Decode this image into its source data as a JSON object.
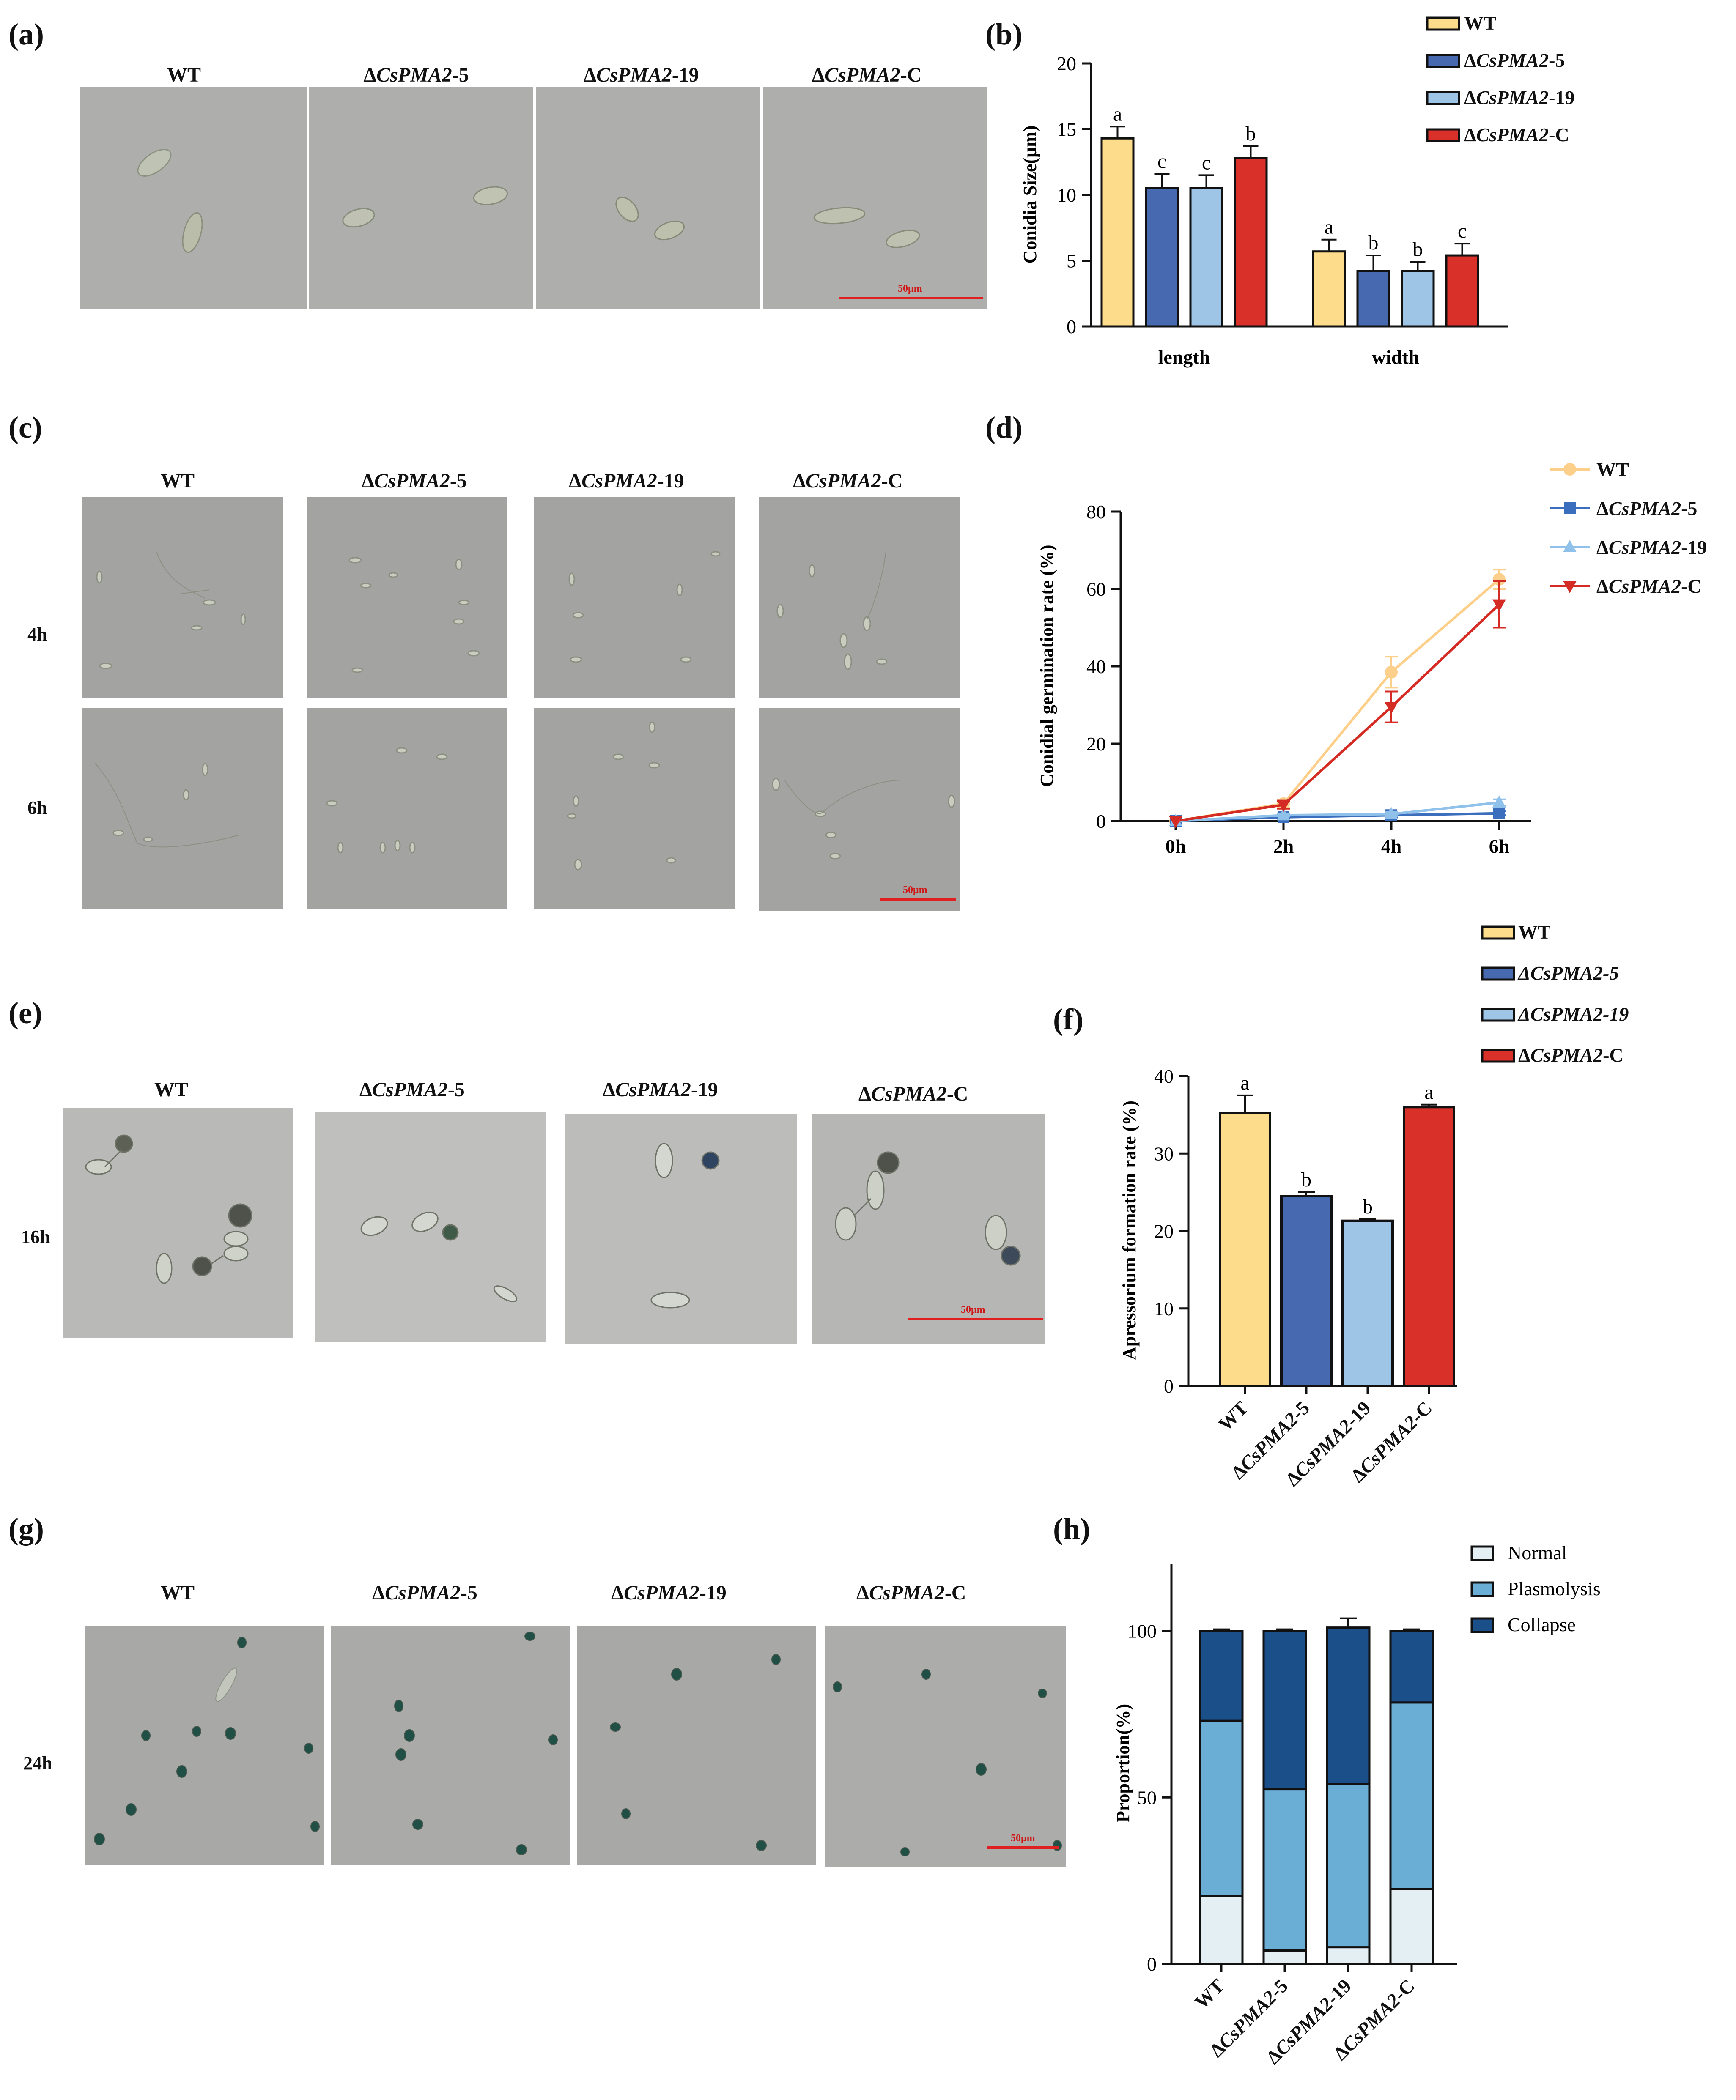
{
  "panels": {
    "a": {
      "letter": "(a)",
      "labels": [
        "WT",
        "ΔCsPMA2-5",
        "ΔCsPMA2-19",
        "ΔCsPMA2-C"
      ],
      "scale": "50μm"
    },
    "c": {
      "letter": "(c)",
      "labels": [
        "WT",
        "ΔCsPMA2-5",
        "ΔCsPMA2-19",
        "ΔCsPMA2-C"
      ],
      "rows": [
        "4h",
        "6h"
      ],
      "scale": "50μm"
    },
    "e": {
      "letter": "(e)",
      "labels": [
        "WT",
        "ΔCsPMA2-5",
        "ΔCsPMA2-19",
        "ΔCsPMA2-C"
      ],
      "rows": [
        "16h"
      ],
      "scale": "50μm"
    },
    "g": {
      "letter": "(g)",
      "labels": [
        "WT",
        "ΔCsPMA2-5",
        "ΔCsPMA2-19",
        "ΔCsPMA2-C"
      ],
      "rows": [
        "24h"
      ],
      "scale": "50μm"
    }
  },
  "colors": {
    "wt": "#fddc8c",
    "m5": "#4669b0",
    "m19": "#9ec5e6",
    "c": "#d9312a",
    "line_wt": "#fcd08a",
    "line_m5": "#3b6fbd",
    "line_m19": "#8fc1ea",
    "line_c": "#d42c24",
    "normal": "#e4eff3",
    "plasmolysis": "#6aaed6",
    "collapse": "#1b4f8a"
  },
  "chart_data": [
    {
      "panel": "(b)",
      "type": "bar",
      "ylabel": "Conidia Size(μm)",
      "ylim": [
        0,
        20
      ],
      "yticks": [
        0,
        5,
        10,
        15,
        20
      ],
      "categories": [
        "length",
        "width"
      ],
      "legend": [
        "WT",
        "ΔCsPMA2-5",
        "ΔCsPMA2-19",
        "ΔCsPMA2-C"
      ],
      "series": [
        {
          "name": "WT",
          "values": [
            14.3,
            5.7
          ],
          "errors": [
            0.9,
            0.9
          ],
          "letters": [
            "a",
            "a"
          ]
        },
        {
          "name": "ΔCsPMA2-5",
          "values": [
            10.5,
            4.2
          ],
          "errors": [
            1.1,
            1.2
          ],
          "letters": [
            "c",
            "b"
          ]
        },
        {
          "name": "ΔCsPMA2-19",
          "values": [
            10.5,
            4.2
          ],
          "errors": [
            1.0,
            0.7
          ],
          "letters": [
            "c",
            "b"
          ]
        },
        {
          "name": "ΔCsPMA2-C",
          "values": [
            12.8,
            5.4
          ],
          "errors": [
            0.9,
            0.9
          ],
          "letters": [
            "b",
            "c"
          ]
        }
      ]
    },
    {
      "panel": "(d)",
      "type": "line",
      "ylabel": "Conidial germination rate (%)",
      "ylim": [
        0,
        80
      ],
      "yticks": [
        0,
        20,
        40,
        60,
        80
      ],
      "x": [
        "0h",
        "2h",
        "4h",
        "6h"
      ],
      "series": [
        {
          "name": "WT",
          "values": [
            0,
            4.5,
            38.5,
            62.5
          ],
          "errors": [
            0,
            1,
            4,
            2.5
          ],
          "marker": "circle"
        },
        {
          "name": "ΔCsPMA2-5",
          "values": [
            0,
            1,
            1.5,
            2
          ],
          "errors": [
            0,
            0.3,
            0.5,
            0.5
          ],
          "marker": "square"
        },
        {
          "name": "ΔCsPMA2-19",
          "values": [
            0,
            1.5,
            1.8,
            4.8
          ],
          "errors": [
            0,
            0.3,
            0.5,
            0.8
          ],
          "marker": "triangle-up"
        },
        {
          "name": "ΔCsPMA2-C",
          "values": [
            0,
            4.2,
            29.5,
            56
          ],
          "errors": [
            0,
            1,
            4,
            6
          ],
          "marker": "triangle-down"
        }
      ]
    },
    {
      "panel": "(f)",
      "type": "bar",
      "ylabel": "Apressorium formation rate (%)",
      "ylim": [
        0,
        40
      ],
      "yticks": [
        0,
        10,
        20,
        30,
        40
      ],
      "categories": [
        "WT",
        "ΔCsPMA2-5",
        "ΔCsPMA2-19",
        "ΔCsPMA2-C"
      ],
      "legend": [
        "WT",
        "ΔCsPMA2-5",
        "ΔCsPMA2-19",
        "ΔCsPMA2-C"
      ],
      "values": [
        35.2,
        24.5,
        21.3,
        36.0
      ],
      "errors": [
        2.3,
        0.5,
        0.2,
        0.3
      ],
      "letters": [
        "a",
        "b",
        "b",
        "a"
      ]
    },
    {
      "panel": "(h)",
      "type": "bar",
      "stacked": true,
      "ylabel": "Proportion(%)",
      "ylim": [
        0,
        120
      ],
      "yticks": [
        0,
        50,
        100
      ],
      "categories": [
        "WT",
        "ΔCsPMA2-5",
        "ΔCsPMA2-19",
        "ΔCsPMA2-C"
      ],
      "series": [
        {
          "name": "Normal",
          "values": [
            20.5,
            4,
            5,
            22.5
          ]
        },
        {
          "name": "Plasmolysis",
          "values": [
            52.5,
            48.5,
            49,
            56
          ]
        },
        {
          "name": "Collapse",
          "values": [
            27,
            47.5,
            47,
            21.5
          ]
        }
      ],
      "totals_error": [
        0.5,
        0.5,
        2.8,
        0.5
      ]
    }
  ]
}
